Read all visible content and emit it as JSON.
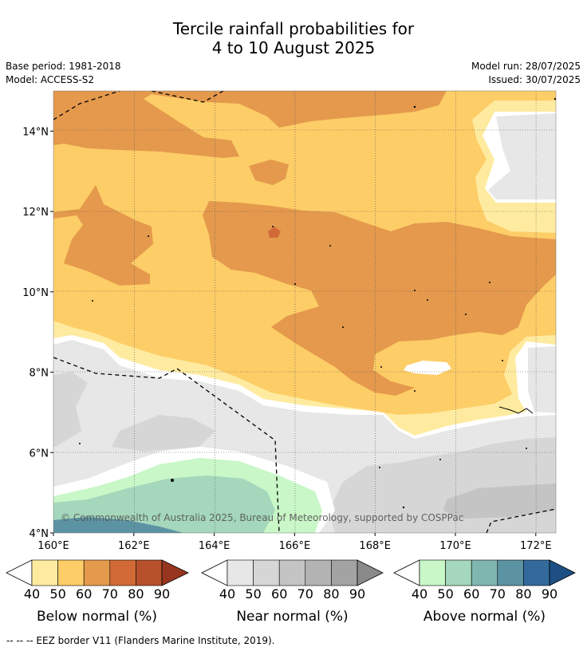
{
  "header": {
    "title_line1": "Tercile rainfall probabilities for",
    "title_line2": "4 to 10 August 2025",
    "base_period": "Base period: 1981-2018",
    "model": "Model: ACCESS-S2",
    "model_run": "Model run: 28/07/2025",
    "issued": "Issued: 30/07/2025"
  },
  "chart_data": {
    "type": "heatmap",
    "x_ticks": [
      "160°E",
      "162°E",
      "164°E",
      "166°E",
      "168°E",
      "170°E",
      "172°E"
    ],
    "y_ticks": [
      "14°N",
      "12°N",
      "10°N",
      "8°N",
      "6°N",
      "4°N"
    ],
    "xlim": [
      160,
      172.5
    ],
    "ylim": [
      4,
      15
    ],
    "grid": true,
    "copyright": "© Commonwealth of Australia 2025, Bureau of Meteorology, supported by COSPPac",
    "colorbars": [
      {
        "label": "Below normal (%)",
        "ticks": [
          "40",
          "50",
          "60",
          "70",
          "80",
          "90"
        ],
        "colors": [
          "#ffeba0",
          "#fdcd67",
          "#e4994c",
          "#d26a38",
          "#b6512b",
          "#973520"
        ]
      },
      {
        "label": "Near normal (%)",
        "ticks": [
          "40",
          "50",
          "60",
          "70",
          "80",
          "90"
        ],
        "colors": [
          "#e7e7e7",
          "#d6d6d6",
          "#c4c4c4",
          "#b3b3b3",
          "#a3a3a3",
          "#8a8a8a"
        ]
      },
      {
        "label": "Above normal (%)",
        "ticks": [
          "40",
          "50",
          "60",
          "70",
          "80",
          "90"
        ],
        "colors": [
          "#c9f7c8",
          "#a4d7bb",
          "#80b6b0",
          "#5c93a3",
          "#336a9b",
          "#1d4f84"
        ]
      }
    ]
  },
  "footnote": "--  --  -- EEZ border V11 (Flanders Marine Institute, 2019)."
}
